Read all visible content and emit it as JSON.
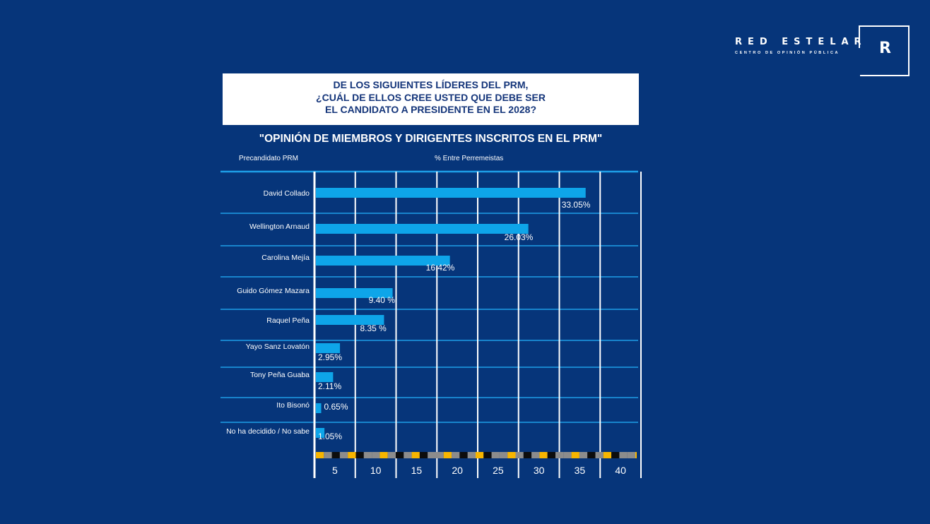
{
  "brand": {
    "name": "RED ESTELAR",
    "subtitle": "CENTRO DE OPINIÓN PÚBLICA",
    "logo_letter": "R"
  },
  "question": {
    "lines": [
      "DE LOS SIGUIENTES LÍDERES DEL PRM,",
      "¿CUÁL DE ELLOS CREE USTED QUE DEBE SER",
      "EL CANDIDATO A PRESIDENTE EN EL 2028?"
    ]
  },
  "subtitle": "\"OPINIÓN DE MIEMBROS Y DIRIGENTES INSCRITOS EN EL PRM\"",
  "columns": {
    "category_header": "Precandidato PRM",
    "value_header": "% Entre Perremeistas"
  },
  "colors": {
    "background": "#06357a",
    "bar": "#0ea5e9",
    "grid": "#ffffff",
    "row_line": "#1e9fe8"
  },
  "chart_data": {
    "type": "bar",
    "orientation": "horizontal",
    "title": "¿CUÁL DE ELLOS CREE USTED QUE DEBE SER EL CANDIDATO A PRESIDENTE EN EL 2028?",
    "categories": [
      "David Collado",
      "Wellington Arnaud",
      "Carolina Mejía",
      "Guido Gómez Mazara",
      "Raquel Peña",
      "Yayo Sanz Lovatón",
      "Tony Peña Guaba",
      "Ito Bisonó",
      "No ha decidido / No sabe"
    ],
    "values": [
      33.05,
      26.03,
      16.42,
      9.4,
      8.35,
      2.95,
      2.11,
      0.65,
      1.05
    ],
    "value_labels": [
      "33.05%",
      "26.03%",
      "16.42%",
      "9.40 %",
      "8.35 %",
      "2.95%",
      "2.11%",
      "0.65%",
      "1.05%"
    ],
    "xlabel": "% Entre Perremeistas",
    "ylabel": "Precandidato PRM",
    "xlim": [
      0,
      40
    ],
    "ticks": [
      5,
      10,
      15,
      20,
      25,
      30,
      35,
      40
    ],
    "grid": true
  }
}
